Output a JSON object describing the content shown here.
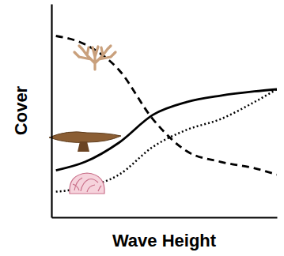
{
  "chart_data": {
    "type": "line",
    "x_label": "Wave Height",
    "y_label": "Cover",
    "x": [
      0.2,
      1.5,
      3,
      4.5,
      6,
      7.5,
      9,
      10
    ],
    "xlim": [
      0,
      10
    ],
    "ylim": [
      0,
      10
    ],
    "tick_labels": false,
    "grid": false,
    "series": [
      {
        "color": "#000000",
        "line_style": "dashed",
        "values": [
          8.5,
          8.1,
          6.9,
          4.6,
          3.1,
          2.6,
          2.3,
          2.0
        ]
      },
      {
        "color": "#000000",
        "line_style": "solid",
        "values": [
          2.2,
          2.6,
          3.5,
          4.8,
          5.4,
          5.7,
          5.9,
          6.0
        ]
      },
      {
        "color": "#000000",
        "line_style": "dotted",
        "values": [
          1.2,
          1.4,
          2.0,
          3.3,
          4.1,
          4.6,
          5.4,
          6.0
        ]
      }
    ]
  }
}
